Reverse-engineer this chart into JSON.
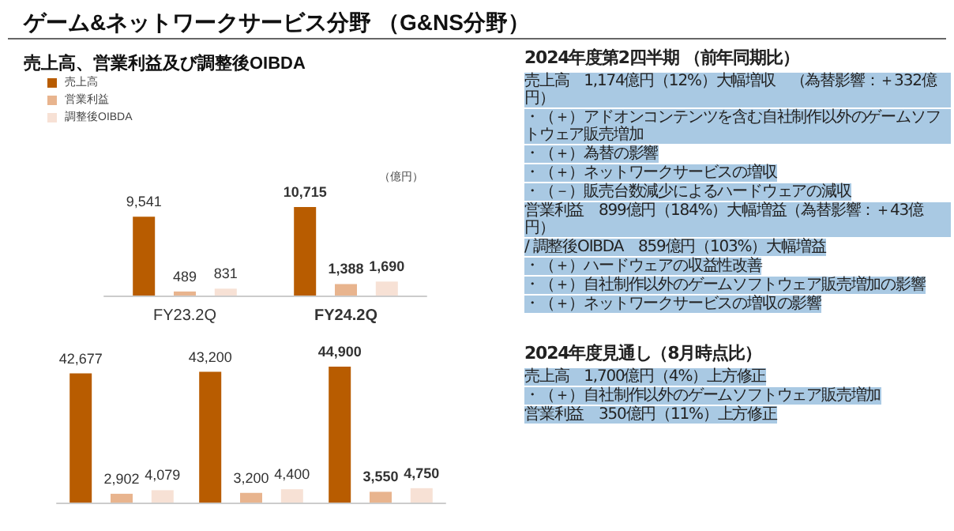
{
  "chart_data": [
    {
      "type": "bar",
      "title": "ゲーム&ネットワークサービス分野 （G&NS分野）",
      "subtitle": "売上高、営業利益及び調整後OIBDA",
      "ylabel": "（億円）",
      "categories": [
        "FY23.2Q",
        "FY24.2Q"
      ],
      "series": [
        {
          "name": "売上高",
          "color": "#b85c00",
          "values": [
            9541,
            10715
          ],
          "value_labels": [
            "9,541",
            "10,715"
          ]
        },
        {
          "name": "営業利益",
          "color": "#e8b48e",
          "values": [
            489,
            1388
          ],
          "value_labels": [
            "489",
            "1,388"
          ]
        },
        {
          "name": "調整後OIBDA",
          "color": "#f7e1d5",
          "values": [
            831,
            1690
          ],
          "value_labels": [
            "831",
            "1,690"
          ]
        }
      ],
      "legend": "top left",
      "annotations": [
        "2024年度第2四半期 （前年同期比）",
        "売上高　1,174億円（12%）大幅増収　（為替影響：＋332億円）",
        "・（＋）アドオンコンテンツを含む自社制作以外のゲームソフトウェア販売増加",
        "・（＋）為替の影響",
        "・（＋）ネットワークサービスの増収",
        "・（－）販売台数減少によるハードウェアの減収",
        "営業利益　899億円（184%）大幅増益（為替影響：＋43億円）",
        "/ 調整後OIBDA　859億円（103%）大幅増益",
        "・（＋）ハードウェアの収益性改善",
        "・（＋）自社制作以外のゲームソフトウェア販売増加の影響",
        "・（＋）ネットワークサービスの増収の影響"
      ]
    },
    {
      "type": "bar",
      "categories": [
        null,
        null,
        null
      ],
      "series": [
        {
          "color": "#b85c00",
          "values": [
            42677,
            43200,
            44900
          ],
          "value_labels": [
            "42,677",
            "43,200",
            "44,900"
          ]
        },
        {
          "color": "#e8b48e",
          "values": [
            2902,
            3200,
            3550
          ],
          "value_labels": [
            "2,902",
            "3,200",
            "3,550"
          ]
        },
        {
          "color": "#f7e1d5",
          "values": [
            4079,
            4400,
            4750
          ],
          "value_labels": [
            "4,079",
            "4,400",
            "4,750"
          ]
        }
      ],
      "annotations": [
        "2024年度見通し（8月時点比）",
        "売上高　1,700億円（4%）上方修正",
        "・（＋）自社制作以外のゲームソフトウェア販売増加",
        "営業利益　350億円（11%）上方修正"
      ]
    }
  ]
}
